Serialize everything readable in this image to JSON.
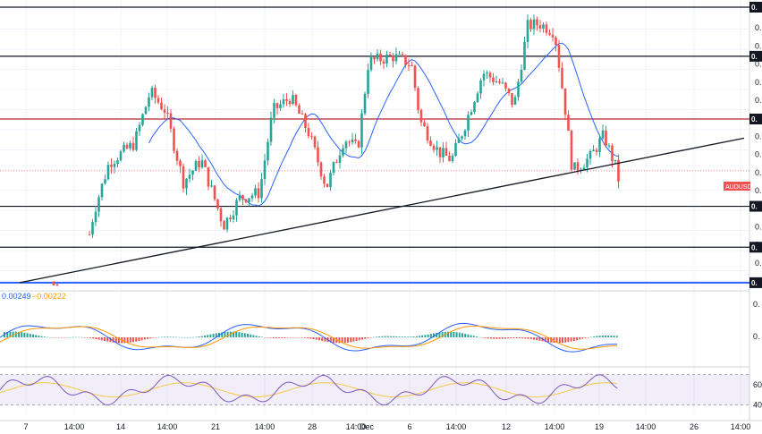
{
  "chart_data": [
    {
      "type": "candlestick",
      "symbol": "AUDUSD",
      "y_ticks": [
        "0.",
        "0.",
        "0.",
        "0.",
        "0.",
        "0.",
        "0.",
        "0.",
        "0.",
        "0.",
        "0.",
        "0.",
        "0.",
        "0.",
        "0."
      ],
      "horizontal_levels": [
        {
          "label": "0.",
          "color": "#131722",
          "style": "solid",
          "level": 1.0
        },
        {
          "label": "0.",
          "color": "#131722",
          "style": "solid",
          "level": 0.82
        },
        {
          "label": "0.",
          "color": "#b22833",
          "style": "solid",
          "level": 0.59
        },
        {
          "label": "0.",
          "color": "#131722",
          "style": "solid",
          "level": 0.27
        },
        {
          "label": "0.",
          "color": "#131722",
          "style": "solid",
          "level": 0.12
        },
        {
          "label": "0.",
          "color": "#2962ff",
          "style": "solid",
          "level": -0.01
        }
      ],
      "trendline": {
        "color": "#131722",
        "from": [
          0.0,
          -0.01
        ],
        "to": [
          1.0,
          0.52
        ]
      },
      "moving_average_color": "#2962ff",
      "last_price_label": "AUDUSD",
      "x_ticks": [
        "7",
        "14:00",
        "14",
        "14:00",
        "21",
        "14:00",
        "28",
        "14:00",
        "Dec",
        "6",
        "14:00",
        "12",
        "14:00",
        "19",
        "14:00",
        "26",
        "14:00"
      ]
    },
    {
      "type": "macd",
      "values_label": [
        "0.00249",
        "−0.00222"
      ],
      "macd_color": "#2962ff",
      "signal_color": "#ff9800",
      "positive_color": "#26a69a",
      "negative_color": "#ef5350",
      "y_ticks": [
        "0.",
        "0."
      ]
    },
    {
      "type": "rsi",
      "y_ticks": [
        "60",
        "40"
      ],
      "band": [
        40,
        70
      ],
      "rsi_color": "#7e57c2",
      "ma_color": "#f7c948"
    }
  ]
}
